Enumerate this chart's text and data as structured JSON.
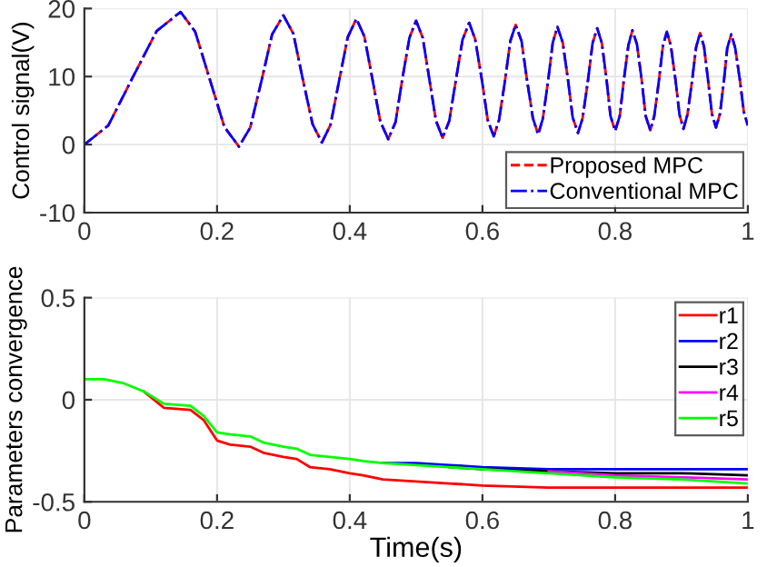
{
  "chart_data": [
    {
      "type": "line",
      "ylabel": "Control signal(V)",
      "xlim": [
        0,
        1
      ],
      "ylim": [
        -10,
        20
      ],
      "xticks": [
        0,
        0.2,
        0.4,
        0.6,
        0.8,
        1
      ],
      "yticks": [
        -10,
        0,
        10,
        20
      ],
      "grid": true,
      "legend": "bottom right",
      "x": [
        0,
        0.036,
        0.0725,
        0.109,
        0.145,
        0.167,
        0.189,
        0.211,
        0.233,
        0.25,
        0.267,
        0.283,
        0.3,
        0.315,
        0.329,
        0.344,
        0.358,
        0.371,
        0.384,
        0.397,
        0.41,
        0.422,
        0.434,
        0.446,
        0.458,
        0.469,
        0.479,
        0.49,
        0.5,
        0.51,
        0.52,
        0.53,
        0.54,
        0.55,
        0.56,
        0.57,
        0.58,
        0.589,
        0.599,
        0.608,
        0.617,
        0.625,
        0.634,
        0.642,
        0.65,
        0.659,
        0.667,
        0.676,
        0.684,
        0.691,
        0.699,
        0.706,
        0.713,
        0.721,
        0.729,
        0.736,
        0.744,
        0.751,
        0.759,
        0.766,
        0.773,
        0.78,
        0.787,
        0.793,
        0.8,
        0.807,
        0.813,
        0.82,
        0.826,
        0.833,
        0.84,
        0.846,
        0.853,
        0.859,
        0.866,
        0.872,
        0.878,
        0.884,
        0.891,
        0.897,
        0.903,
        0.909,
        0.916,
        0.922,
        0.928,
        0.934,
        0.94,
        0.946,
        0.952,
        0.958,
        0.964,
        0.969,
        0.975,
        0.981,
        0.988,
        0.994,
        1.0
      ],
      "series": [
        {
          "name": "Proposed MPC",
          "color": "#ff0000",
          "line_style": "dashed",
          "values": [
            0,
            2.8,
            9.8,
            16.7,
            19.5,
            16.6,
            9.6,
            2.6,
            -0.3,
            2.5,
            9.4,
            16.2,
            19,
            16.3,
            9.7,
            3.0,
            0.3,
            2.9,
            9.4,
            15.8,
            18.5,
            15.9,
            9.7,
            3.4,
            0.8,
            3.3,
            9.5,
            15.7,
            18.2,
            15.7,
            9.6,
            3.5,
            1,
            3.5,
            9.5,
            15.4,
            17.9,
            15.5,
            9.6,
            3.6,
            1.2,
            3.6,
            9.4,
            15.2,
            17.6,
            15.2,
            9.6,
            3.9,
            1.5,
            3.8,
            9.4,
            15.0,
            17.3,
            15.0,
            9.5,
            4.0,
            1.7,
            3.9,
            9.4,
            14.9,
            17.1,
            14.9,
            9.6,
            4.2,
            2,
            4.2,
            9.4,
            14.6,
            16.8,
            14.7,
            9.5,
            4.2,
            2.1,
            4.2,
            9.4,
            14.5,
            16.6,
            14.5,
            9.5,
            4.4,
            2.3,
            4.4,
            9.4,
            14.3,
            16.4,
            14.4,
            9.5,
            4.5,
            2.5,
            4.5,
            9.4,
            14.2,
            16.2,
            14.2,
            9.5,
            4.8,
            2.8
          ]
        },
        {
          "name": "Conventional MPC",
          "color": "#0000ff",
          "line_style": "dashdot",
          "values": [
            0,
            2.8,
            9.8,
            16.7,
            19.5,
            16.6,
            9.6,
            2.6,
            -0.3,
            2.5,
            9.4,
            16.2,
            19,
            16.3,
            9.7,
            3.0,
            0.3,
            2.9,
            9.4,
            15.8,
            18.5,
            15.9,
            9.7,
            3.4,
            0.8,
            3.3,
            9.5,
            15.7,
            18.2,
            15.7,
            9.6,
            3.5,
            1,
            3.5,
            9.5,
            15.4,
            17.9,
            15.5,
            9.6,
            3.6,
            1.2,
            3.6,
            9.4,
            15.2,
            17.6,
            15.2,
            9.6,
            3.9,
            1.5,
            3.8,
            9.4,
            15.0,
            17.3,
            15.0,
            9.5,
            4.0,
            1.7,
            3.9,
            9.4,
            14.9,
            17.1,
            14.9,
            9.6,
            4.2,
            2,
            4.2,
            9.4,
            14.6,
            16.8,
            14.7,
            9.5,
            4.2,
            2.1,
            4.2,
            9.4,
            14.5,
            16.6,
            14.5,
            9.5,
            4.4,
            2.3,
            4.4,
            9.4,
            14.3,
            16.4,
            14.4,
            9.5,
            4.5,
            2.5,
            4.5,
            9.4,
            14.2,
            16.2,
            14.2,
            9.5,
            4.8,
            2.8
          ]
        }
      ]
    },
    {
      "type": "line",
      "xlabel": "Time(s)",
      "ylabel": "Parameters convergence",
      "xlim": [
        0,
        1
      ],
      "ylim": [
        -0.5,
        0.5
      ],
      "xticks": [
        0,
        0.2,
        0.4,
        0.6,
        0.8,
        1
      ],
      "yticks": [
        -0.5,
        0,
        0.5
      ],
      "grid": true,
      "legend": "top right",
      "x": [
        0,
        0.03,
        0.06,
        0.09,
        0.12,
        0.16,
        0.18,
        0.2,
        0.22,
        0.25,
        0.27,
        0.3,
        0.32,
        0.34,
        0.37,
        0.4,
        0.42,
        0.45,
        0.5,
        0.55,
        0.6,
        0.7,
        0.8,
        0.9,
        1.0
      ],
      "series": [
        {
          "name": "r1",
          "color": "#ff0000",
          "values": [
            null,
            null,
            null,
            0.04,
            -0.04,
            -0.05,
            -0.1,
            -0.2,
            -0.22,
            -0.23,
            -0.26,
            -0.28,
            -0.29,
            -0.33,
            -0.34,
            -0.36,
            -0.37,
            -0.39,
            -0.4,
            -0.41,
            -0.42,
            -0.43,
            -0.43,
            -0.43,
            -0.43
          ]
        },
        {
          "name": "r2",
          "color": "#0000ff",
          "values": [
            null,
            null,
            null,
            null,
            null,
            null,
            null,
            null,
            null,
            null,
            null,
            null,
            null,
            null,
            null,
            null,
            null,
            -0.31,
            -0.31,
            -0.32,
            -0.33,
            -0.34,
            -0.34,
            -0.34,
            -0.34
          ]
        },
        {
          "name": "r3",
          "color": "#000000",
          "values": [
            null,
            null,
            null,
            null,
            null,
            null,
            null,
            null,
            null,
            null,
            null,
            null,
            null,
            null,
            null,
            null,
            null,
            null,
            null,
            -0.33,
            -0.34,
            -0.35,
            -0.36,
            -0.36,
            -0.37
          ]
        },
        {
          "name": "r4",
          "color": "#ff00ff",
          "values": [
            null,
            null,
            null,
            null,
            null,
            null,
            null,
            null,
            null,
            null,
            null,
            null,
            null,
            null,
            null,
            null,
            null,
            null,
            null,
            null,
            null,
            -0.35,
            -0.37,
            -0.38,
            -0.39
          ]
        },
        {
          "name": "r5",
          "color": "#00ff00",
          "values": [
            0.1,
            0.1,
            0.08,
            0.04,
            -0.02,
            -0.03,
            -0.08,
            -0.16,
            -0.17,
            -0.18,
            -0.21,
            -0.23,
            -0.24,
            -0.27,
            -0.28,
            -0.29,
            -0.3,
            -0.31,
            -0.32,
            -0.33,
            -0.34,
            -0.36,
            -0.38,
            -0.39,
            -0.41
          ]
        }
      ]
    }
  ]
}
